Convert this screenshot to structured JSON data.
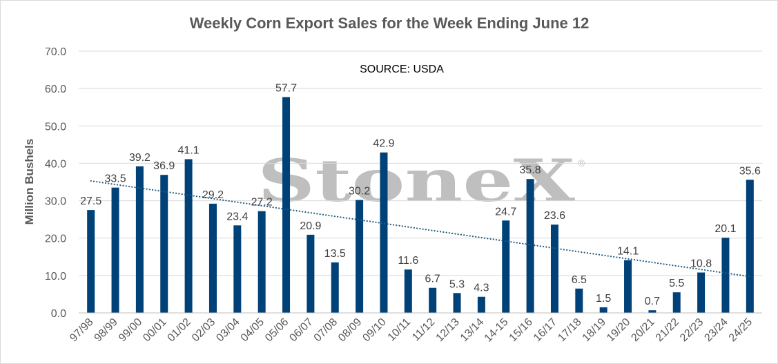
{
  "chart_data": {
    "type": "bar",
    "title": "Weekly Corn Export Sales for the Week Ending June 12",
    "xlabel": "",
    "ylabel": "Million Bushels",
    "ylim": [
      0,
      70
    ],
    "yticks": [
      "0.0",
      "10.0",
      "20.0",
      "30.0",
      "40.0",
      "50.0",
      "60.0",
      "70.0"
    ],
    "grid": true,
    "annotation": "SOURCE: USDA",
    "watermark": "StoneX",
    "watermark_mark": "®",
    "categories": [
      "97/98",
      "98/99",
      "99/00",
      "00/01",
      "01/02",
      "02/03",
      "03/04",
      "04/05",
      "05/06",
      "06/07",
      "07/08",
      "08/09",
      "09/10",
      "10/11",
      "11/12",
      "12/13",
      "13/14",
      "14-15",
      "15/16",
      "16/17",
      "17/18",
      "18/19",
      "19/20",
      "20/21",
      "21/22",
      "22/23",
      "23/24",
      "24/25"
    ],
    "series": [
      {
        "values": [
          27.5,
          33.5,
          39.2,
          36.9,
          41.1,
          29.2,
          23.4,
          27.2,
          57.7,
          20.9,
          13.5,
          30.2,
          42.9,
          11.6,
          6.7,
          5.3,
          4.3,
          24.7,
          35.8,
          23.6,
          6.5,
          1.5,
          14.1,
          0.7,
          5.5,
          10.8,
          20.1,
          35.6
        ],
        "color": "#004178"
      }
    ],
    "trendline": {
      "type": "linear",
      "style": "dotted",
      "color": "#1f5c82"
    }
  }
}
